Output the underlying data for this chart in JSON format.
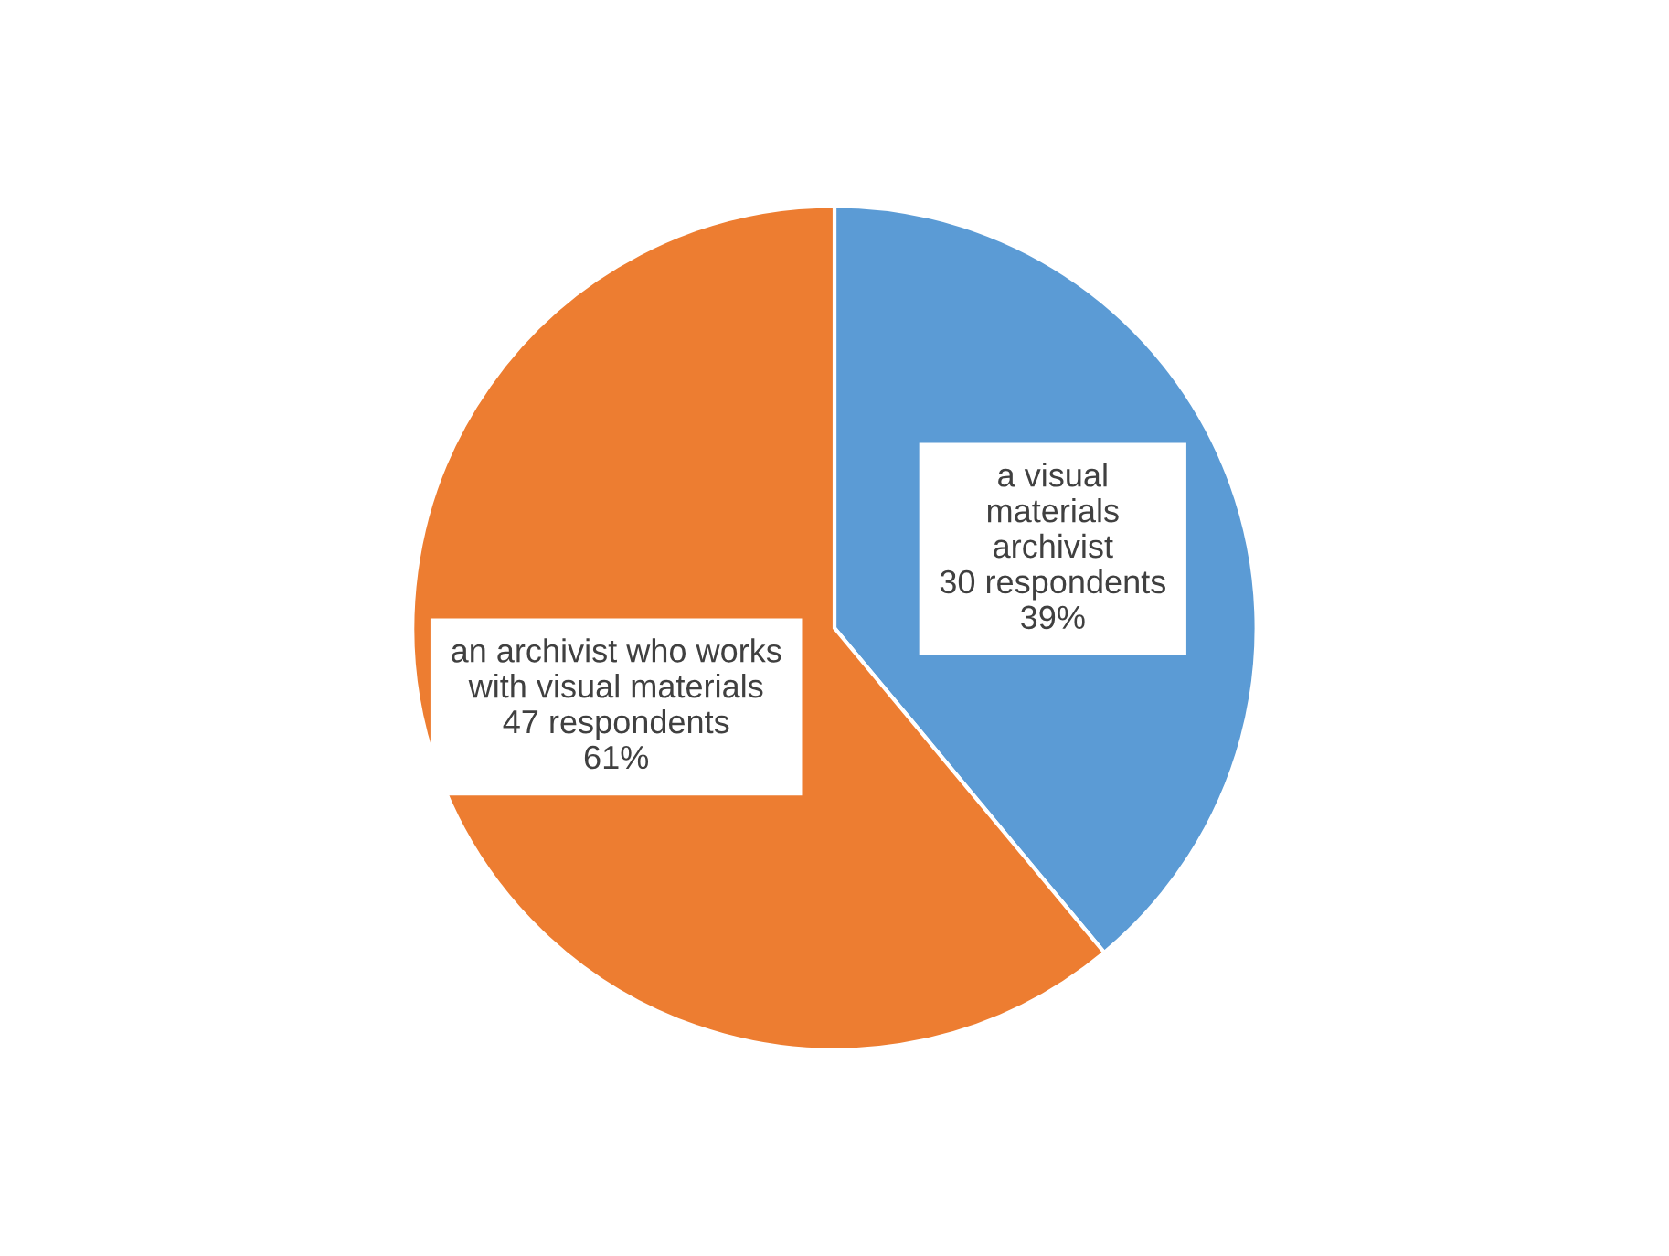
{
  "chart_data": {
    "type": "pie",
    "categories": [
      "a visual\nmaterials\narchivist",
      "an archivist who works\nwith visual materials"
    ],
    "values": [
      30,
      47
    ],
    "colors": [
      "#5b9bd5",
      "#ed7d31"
    ],
    "value_labels": [
      "30 respondents\n39%",
      "47 respondents\n61%"
    ],
    "legend": false
  }
}
